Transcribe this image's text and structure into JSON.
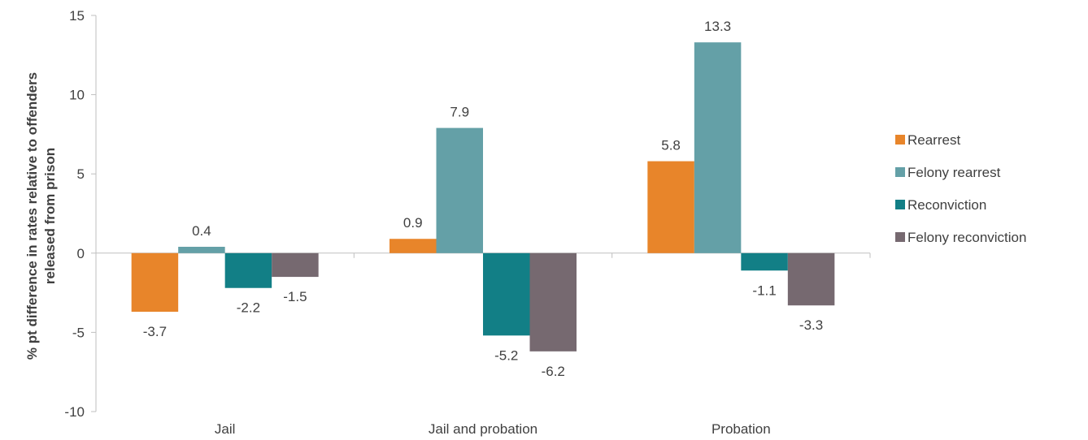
{
  "chart_data": {
    "type": "bar",
    "categories": [
      "Jail",
      "Jail and probation",
      "Probation"
    ],
    "series": [
      {
        "name": "Rearrest",
        "color": "#E8852A",
        "values": [
          -3.7,
          0.9,
          5.8
        ]
      },
      {
        "name": "Felony rearrest",
        "color": "#64A0A7",
        "values": [
          0.4,
          7.9,
          13.3
        ]
      },
      {
        "name": "Reconviction",
        "color": "#127F86",
        "values": [
          -2.2,
          -5.2,
          -1.1
        ]
      },
      {
        "name": "Felony reconviction",
        "color": "#766970",
        "values": [
          -1.5,
          -6.2,
          -3.3
        ]
      }
    ],
    "ylabel_lines": [
      "% pt difference in rates relative to offenders",
      "released from prison"
    ],
    "xlabel": "",
    "title": "",
    "ylim": [
      -10,
      15
    ],
    "yticks": [
      15,
      10,
      5,
      0,
      -5,
      -10
    ],
    "grid": false,
    "legend_position": "right"
  }
}
